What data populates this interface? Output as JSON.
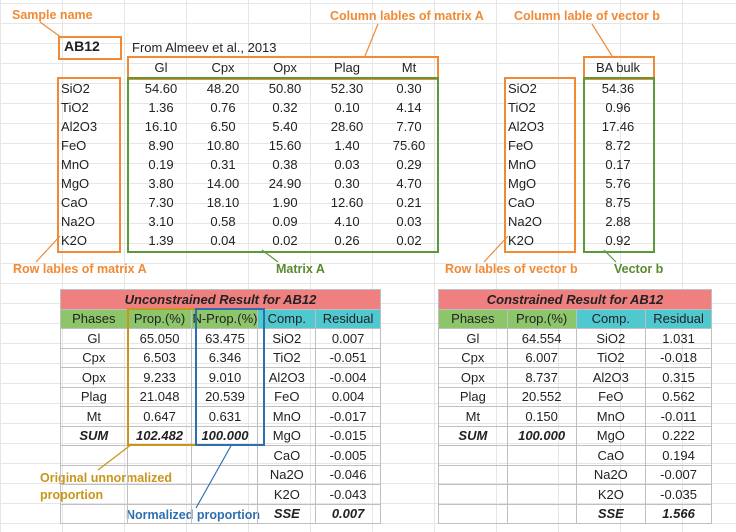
{
  "annotations": {
    "sample_name": "Sample name",
    "col_labels_a": "Column lables of matrix A",
    "col_label_b": "Column lable of vector b",
    "row_labels_a": "Row lables of matrix A",
    "matrix_a": "Matrix A",
    "row_labels_b": "Row lables of vector b",
    "vector_b": "Vector b",
    "original": "Original unnormalized proportion",
    "normalized": "Normalized proportion"
  },
  "colors": {
    "orange": "#f08a35",
    "green": "#5a9a3c",
    "gold": "#c8961c",
    "blue": "#2f6fb0",
    "title_bg": "#f08080",
    "header_green": "#8dc66a",
    "header_teal": "#4fc8d0"
  },
  "sheet": {
    "sample": "AB12",
    "source": "From Almeev et al., 2013",
    "phases": [
      "Gl",
      "Cpx",
      "Opx",
      "Plag",
      "Mt"
    ],
    "oxides": [
      "SiO2",
      "TiO2",
      "Al2O3",
      "FeO",
      "MnO",
      "MgO",
      "CaO",
      "Na2O",
      "K2O"
    ],
    "matrix": [
      [
        "54.60",
        "48.20",
        "50.80",
        "52.30",
        "0.30"
      ],
      [
        "1.36",
        "0.76",
        "0.32",
        "0.10",
        "4.14"
      ],
      [
        "16.10",
        "6.50",
        "5.40",
        "28.60",
        "7.70"
      ],
      [
        "8.90",
        "10.80",
        "15.60",
        "1.40",
        "75.60"
      ],
      [
        "0.19",
        "0.31",
        "0.38",
        "0.03",
        "0.29"
      ],
      [
        "3.80",
        "14.00",
        "24.90",
        "0.30",
        "4.70"
      ],
      [
        "7.30",
        "18.10",
        "1.90",
        "12.60",
        "0.21"
      ],
      [
        "3.10",
        "0.58",
        "0.09",
        "4.10",
        "0.03"
      ],
      [
        "1.39",
        "0.04",
        "0.02",
        "0.26",
        "0.02"
      ]
    ],
    "bulk_label": "BA bulk",
    "bulk": [
      "54.36",
      "0.96",
      "17.46",
      "8.72",
      "0.17",
      "5.76",
      "8.75",
      "2.88",
      "0.92"
    ]
  },
  "unconstrained": {
    "title": "Unconstrained Result for AB12",
    "headers": [
      "Phases",
      "Prop.(%)",
      "N-Prop.(%)",
      "Comp.",
      "Residual"
    ],
    "rows": [
      [
        "Gl",
        "65.050",
        "63.475",
        "SiO2",
        "0.007"
      ],
      [
        "Cpx",
        "6.503",
        "6.346",
        "TiO2",
        "-0.051"
      ],
      [
        "Opx",
        "9.233",
        "9.010",
        "Al2O3",
        "-0.004"
      ],
      [
        "Plag",
        "21.048",
        "20.539",
        "FeO",
        "0.004"
      ],
      [
        "Mt",
        "0.647",
        "0.631",
        "MnO",
        "-0.017"
      ],
      [
        "SUM",
        "102.482",
        "100.000",
        "MgO",
        "-0.015"
      ],
      [
        "",
        "",
        "",
        "CaO",
        "-0.005"
      ],
      [
        "",
        "",
        "",
        "Na2O",
        "-0.046"
      ],
      [
        "",
        "",
        "",
        "K2O",
        "-0.043"
      ],
      [
        "",
        "",
        "",
        "SSE",
        "0.007"
      ]
    ]
  },
  "constrained": {
    "title": "Constrained Result for AB12",
    "headers": [
      "Phases",
      "Prop.(%)",
      "Comp.",
      "Residual"
    ],
    "rows": [
      [
        "Gl",
        "64.554",
        "SiO2",
        "1.031"
      ],
      [
        "Cpx",
        "6.007",
        "TiO2",
        "-0.018"
      ],
      [
        "Opx",
        "8.737",
        "Al2O3",
        "0.315"
      ],
      [
        "Plag",
        "20.552",
        "FeO",
        "0.562"
      ],
      [
        "Mt",
        "0.150",
        "MnO",
        "-0.011"
      ],
      [
        "SUM",
        "100.000",
        "MgO",
        "0.222"
      ],
      [
        "",
        "",
        "CaO",
        "0.194"
      ],
      [
        "",
        "",
        "Na2O",
        "-0.007"
      ],
      [
        "",
        "",
        "K2O",
        "-0.035"
      ],
      [
        "",
        "",
        "SSE",
        "1.566"
      ]
    ]
  }
}
